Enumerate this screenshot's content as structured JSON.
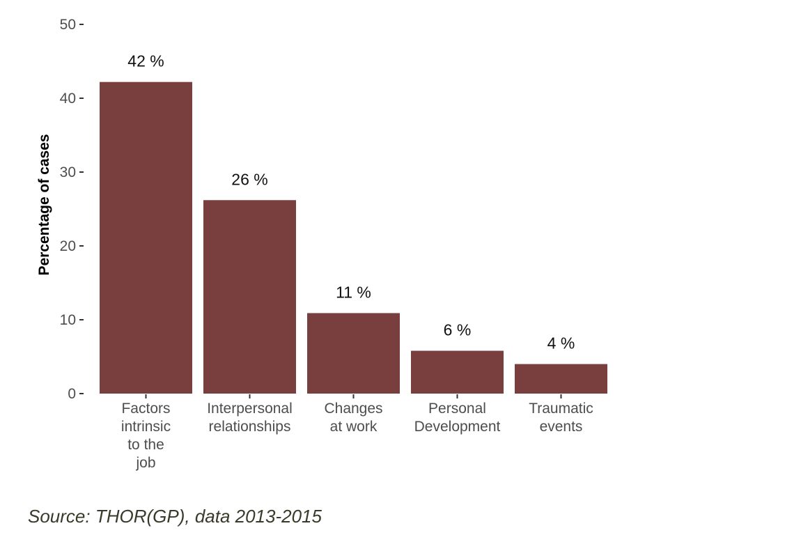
{
  "chart_data": {
    "type": "bar",
    "title": "",
    "xlabel": "",
    "ylabel": "Percentage of cases",
    "ylim": [
      0,
      50
    ],
    "yticks": [
      0,
      10,
      20,
      30,
      40,
      50
    ],
    "categories": [
      [
        "Factors",
        "intrinsic",
        "to the",
        "job"
      ],
      [
        "Interpersonal",
        "relationships"
      ],
      [
        "Changes",
        "at work"
      ],
      [
        "Personal",
        "Development"
      ],
      [
        "Traumatic",
        "events"
      ]
    ],
    "values": [
      42.2,
      26.2,
      10.9,
      5.8,
      4.0
    ],
    "data_labels": [
      "42 %",
      "26 %",
      "11 %",
      "6 %",
      "4 %"
    ],
    "bar_color": "#793e3e",
    "grid": false
  },
  "source": "Source: THOR(GP), data 2013-2015"
}
